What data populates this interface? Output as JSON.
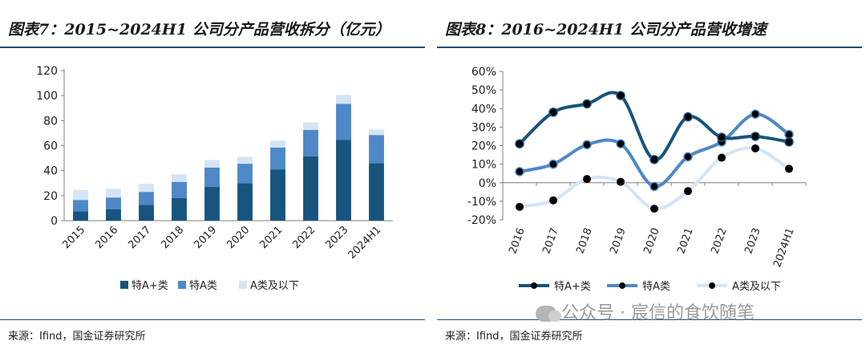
{
  "colors": {
    "dark": "#17547e",
    "mid": "#4e88c7",
    "light": "#d3e5f5",
    "rule": "#1f4e79"
  },
  "left": {
    "title": "图表7：2015~2024H1 公司分产品营收拆分（亿元）",
    "source": "来源：Ifind，国金证券研究所",
    "legend": [
      "特A+类",
      "特A类",
      "A类及以下"
    ]
  },
  "right": {
    "title": "图表8：2016~2024H1 公司分产品营收增速",
    "source": "来源：Ifind，国金证券研究所",
    "legend": [
      "特A+类",
      "特A类",
      "A类及以下"
    ]
  },
  "watermark": "公众号 · 宸信的食饮随笔",
  "chart_data": [
    {
      "type": "bar",
      "stacked": true,
      "title": "图表7：2015~2024H1 公司分产品营收拆分（亿元）",
      "categories": [
        "2015",
        "2016",
        "2017",
        "2018",
        "2019",
        "2020",
        "2021",
        "2022",
        "2023",
        "2024H1"
      ],
      "series": [
        {
          "name": "特A+类",
          "color": "#17547e",
          "values": [
            7.5,
            9,
            12.5,
            18,
            27,
            30,
            41,
            51.5,
            64.5,
            46
          ]
        },
        {
          "name": "特A类",
          "color": "#4e88c7",
          "values": [
            9,
            9.5,
            10.5,
            13,
            15.5,
            15.5,
            17.5,
            21,
            29,
            22.5
          ]
        },
        {
          "name": "A类及以下",
          "color": "#d3e5f5",
          "values": [
            8,
            7,
            6.5,
            6,
            6,
            5.5,
            5.5,
            6,
            7,
            4.5
          ]
        }
      ],
      "yticks": [
        0,
        20,
        40,
        60,
        80,
        100,
        120
      ],
      "ylim": [
        0,
        120
      ],
      "legend_position": "bottom"
    },
    {
      "type": "line",
      "smooth": true,
      "title": "图表8：2016~2024H1 公司分产品营收增速",
      "categories": [
        "2016",
        "2017",
        "2018",
        "2019",
        "2020",
        "2021",
        "2022",
        "2023",
        "2024H1"
      ],
      "series": [
        {
          "name": "特A+类",
          "color": "#17547e",
          "values": [
            21,
            38,
            42.5,
            47,
            12.5,
            35.5,
            24.5,
            25,
            22
          ]
        },
        {
          "name": "特A类",
          "color": "#4e88c7",
          "values": [
            6,
            10,
            20.5,
            21,
            -2,
            14,
            22,
            37,
            26
          ]
        },
        {
          "name": "A类及以下",
          "color": "#d3e5f5",
          "values": [
            -13,
            -9.5,
            2,
            0.5,
            -14,
            -4.5,
            13.5,
            18.5,
            7.5
          ]
        }
      ],
      "yticks": [
        "-20%",
        "-10%",
        "0%",
        "10%",
        "20%",
        "30%",
        "40%",
        "50%",
        "60%"
      ],
      "ylim": [
        -20,
        60
      ],
      "legend_position": "bottom"
    }
  ]
}
